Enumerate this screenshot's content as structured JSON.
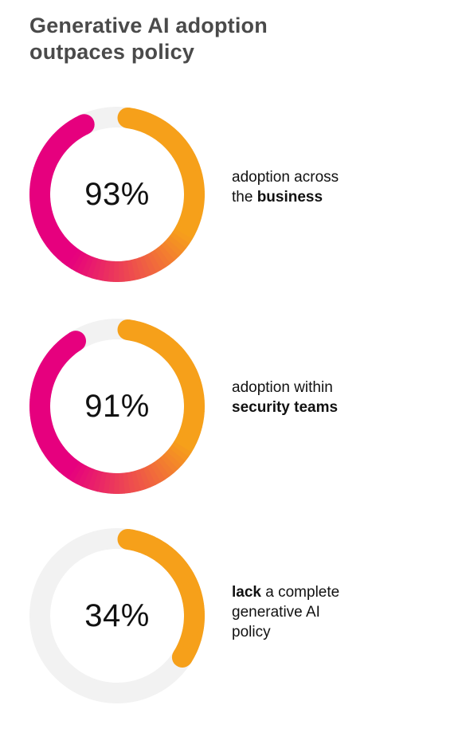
{
  "title": "Generative AI adoption outpaces policy",
  "colors": {
    "orange": "#F6A01A",
    "magenta": "#E6007E",
    "track": "#F2F2F2",
    "title": "#4A4A4A"
  },
  "stats": [
    {
      "percent_label": "93%",
      "value": 93,
      "desc_line1": "adoption across",
      "desc_prefix": "the ",
      "desc_bold": "business",
      "desc_suffix": "",
      "gradient": true
    },
    {
      "percent_label": "91%",
      "value": 91,
      "desc_line1": "adoption within",
      "desc_prefix": "",
      "desc_bold": "security teams",
      "desc_suffix": "",
      "gradient": true
    },
    {
      "percent_label": "34%",
      "value": 34,
      "desc_bold_lead": "lack",
      "desc_rest1": " a complete",
      "desc_line2": "generative AI",
      "desc_line3": "policy",
      "gradient": false
    }
  ],
  "chart_data": {
    "type": "pie",
    "title": "Generative AI adoption outpaces policy",
    "categories": [
      "adoption across the business",
      "adoption within security teams",
      "lack a complete generative AI policy"
    ],
    "values": [
      93,
      91,
      34
    ],
    "unit": "%"
  }
}
